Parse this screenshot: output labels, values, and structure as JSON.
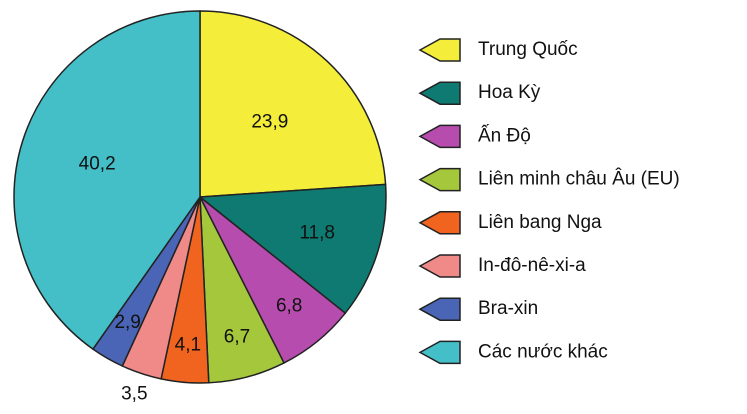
{
  "chart_data": {
    "type": "pie",
    "categories": [
      "Trung Quốc",
      "Hoa Kỳ",
      "Ấn Độ",
      "Liên minh châu Âu (EU)",
      "Liên bang Nga",
      "In-đô-nê-xi-a",
      "Bra-xin",
      "Các nước khác"
    ],
    "values": [
      23.9,
      11.8,
      6.8,
      6.7,
      4.1,
      3.5,
      2.9,
      40.2
    ],
    "value_labels": [
      "23,9",
      "11,8",
      "6,8",
      "6,7",
      "4,1",
      "3,5",
      "2,9",
      "40,2"
    ],
    "colors": [
      "#f4ee3a",
      "#0f7a72",
      "#b64dae",
      "#a4c73b",
      "#f0641f",
      "#ef8a89",
      "#4a65b5",
      "#44bfc7"
    ],
    "legend": "right"
  }
}
